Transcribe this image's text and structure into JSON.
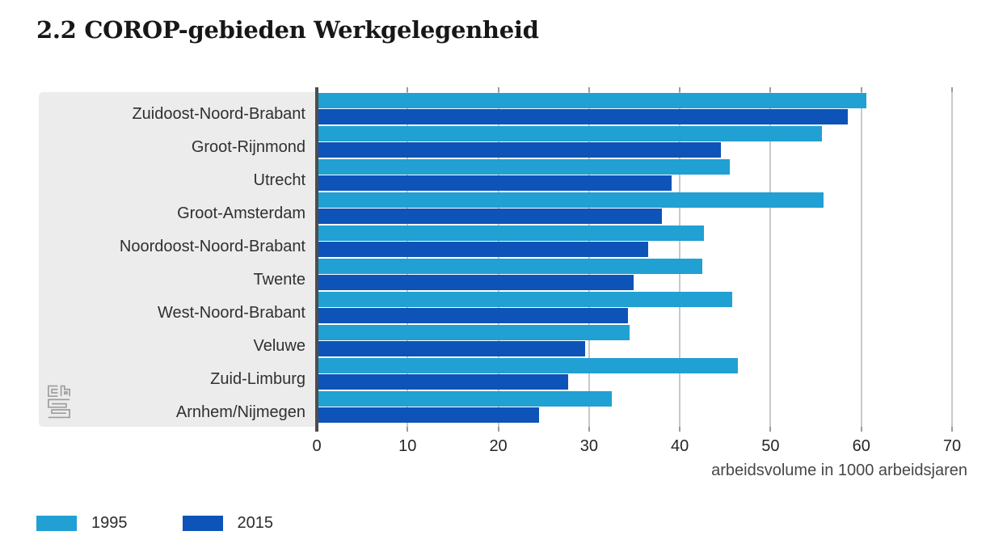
{
  "title": "2.2 COROP-gebieden Werkgelegenheid",
  "colors": {
    "series_1995": "#21A0D3",
    "series_2015": "#0E53B7",
    "panel_background": "#ECECEC",
    "axis_line": "#4D4D4D",
    "gridline": "#C9C9C9"
  },
  "legend": [
    {
      "label": "1995",
      "color": "#21A0D3"
    },
    {
      "label": "2015",
      "color": "#0E53B7"
    }
  ],
  "x_axis": {
    "ticks": [
      0,
      10,
      20,
      30,
      40,
      50,
      60,
      70
    ],
    "caption": "arbeidsvolume in 1000 arbeidsjaren"
  },
  "branding": {
    "logo": "cbs"
  },
  "chart_data": {
    "type": "bar",
    "orientation": "horizontal",
    "title": "2.2 COROP-gebieden Werkgelegenheid",
    "categories": [
      "Zuidoost-Noord-Brabant",
      "Groot-Rijnmond",
      "Utrecht",
      "Groot-Amsterdam",
      "Noordoost-Noord-Brabant",
      "Twente",
      "West-Noord-Brabant",
      "Veluwe",
      "Zuid-Limburg",
      "Arnhem/Nijmegen"
    ],
    "series": [
      {
        "name": "1995",
        "color": "#21A0D3",
        "values": [
          60.6,
          55.7,
          45.5,
          55.8,
          42.7,
          42.5,
          45.8,
          34.5,
          46.4,
          32.5
        ]
      },
      {
        "name": "2015",
        "color": "#0E53B7",
        "values": [
          58.5,
          44.5,
          39.1,
          38.0,
          36.5,
          34.9,
          34.3,
          29.6,
          27.7,
          24.5
        ]
      }
    ],
    "xlabel": "arbeidsvolume in 1000 arbeidsjaren",
    "ylabel": "",
    "xlim": [
      0,
      70
    ],
    "xticks": [
      0,
      10,
      20,
      30,
      40,
      50,
      60,
      70
    ],
    "grid": true,
    "legend_position": "bottom-left"
  }
}
